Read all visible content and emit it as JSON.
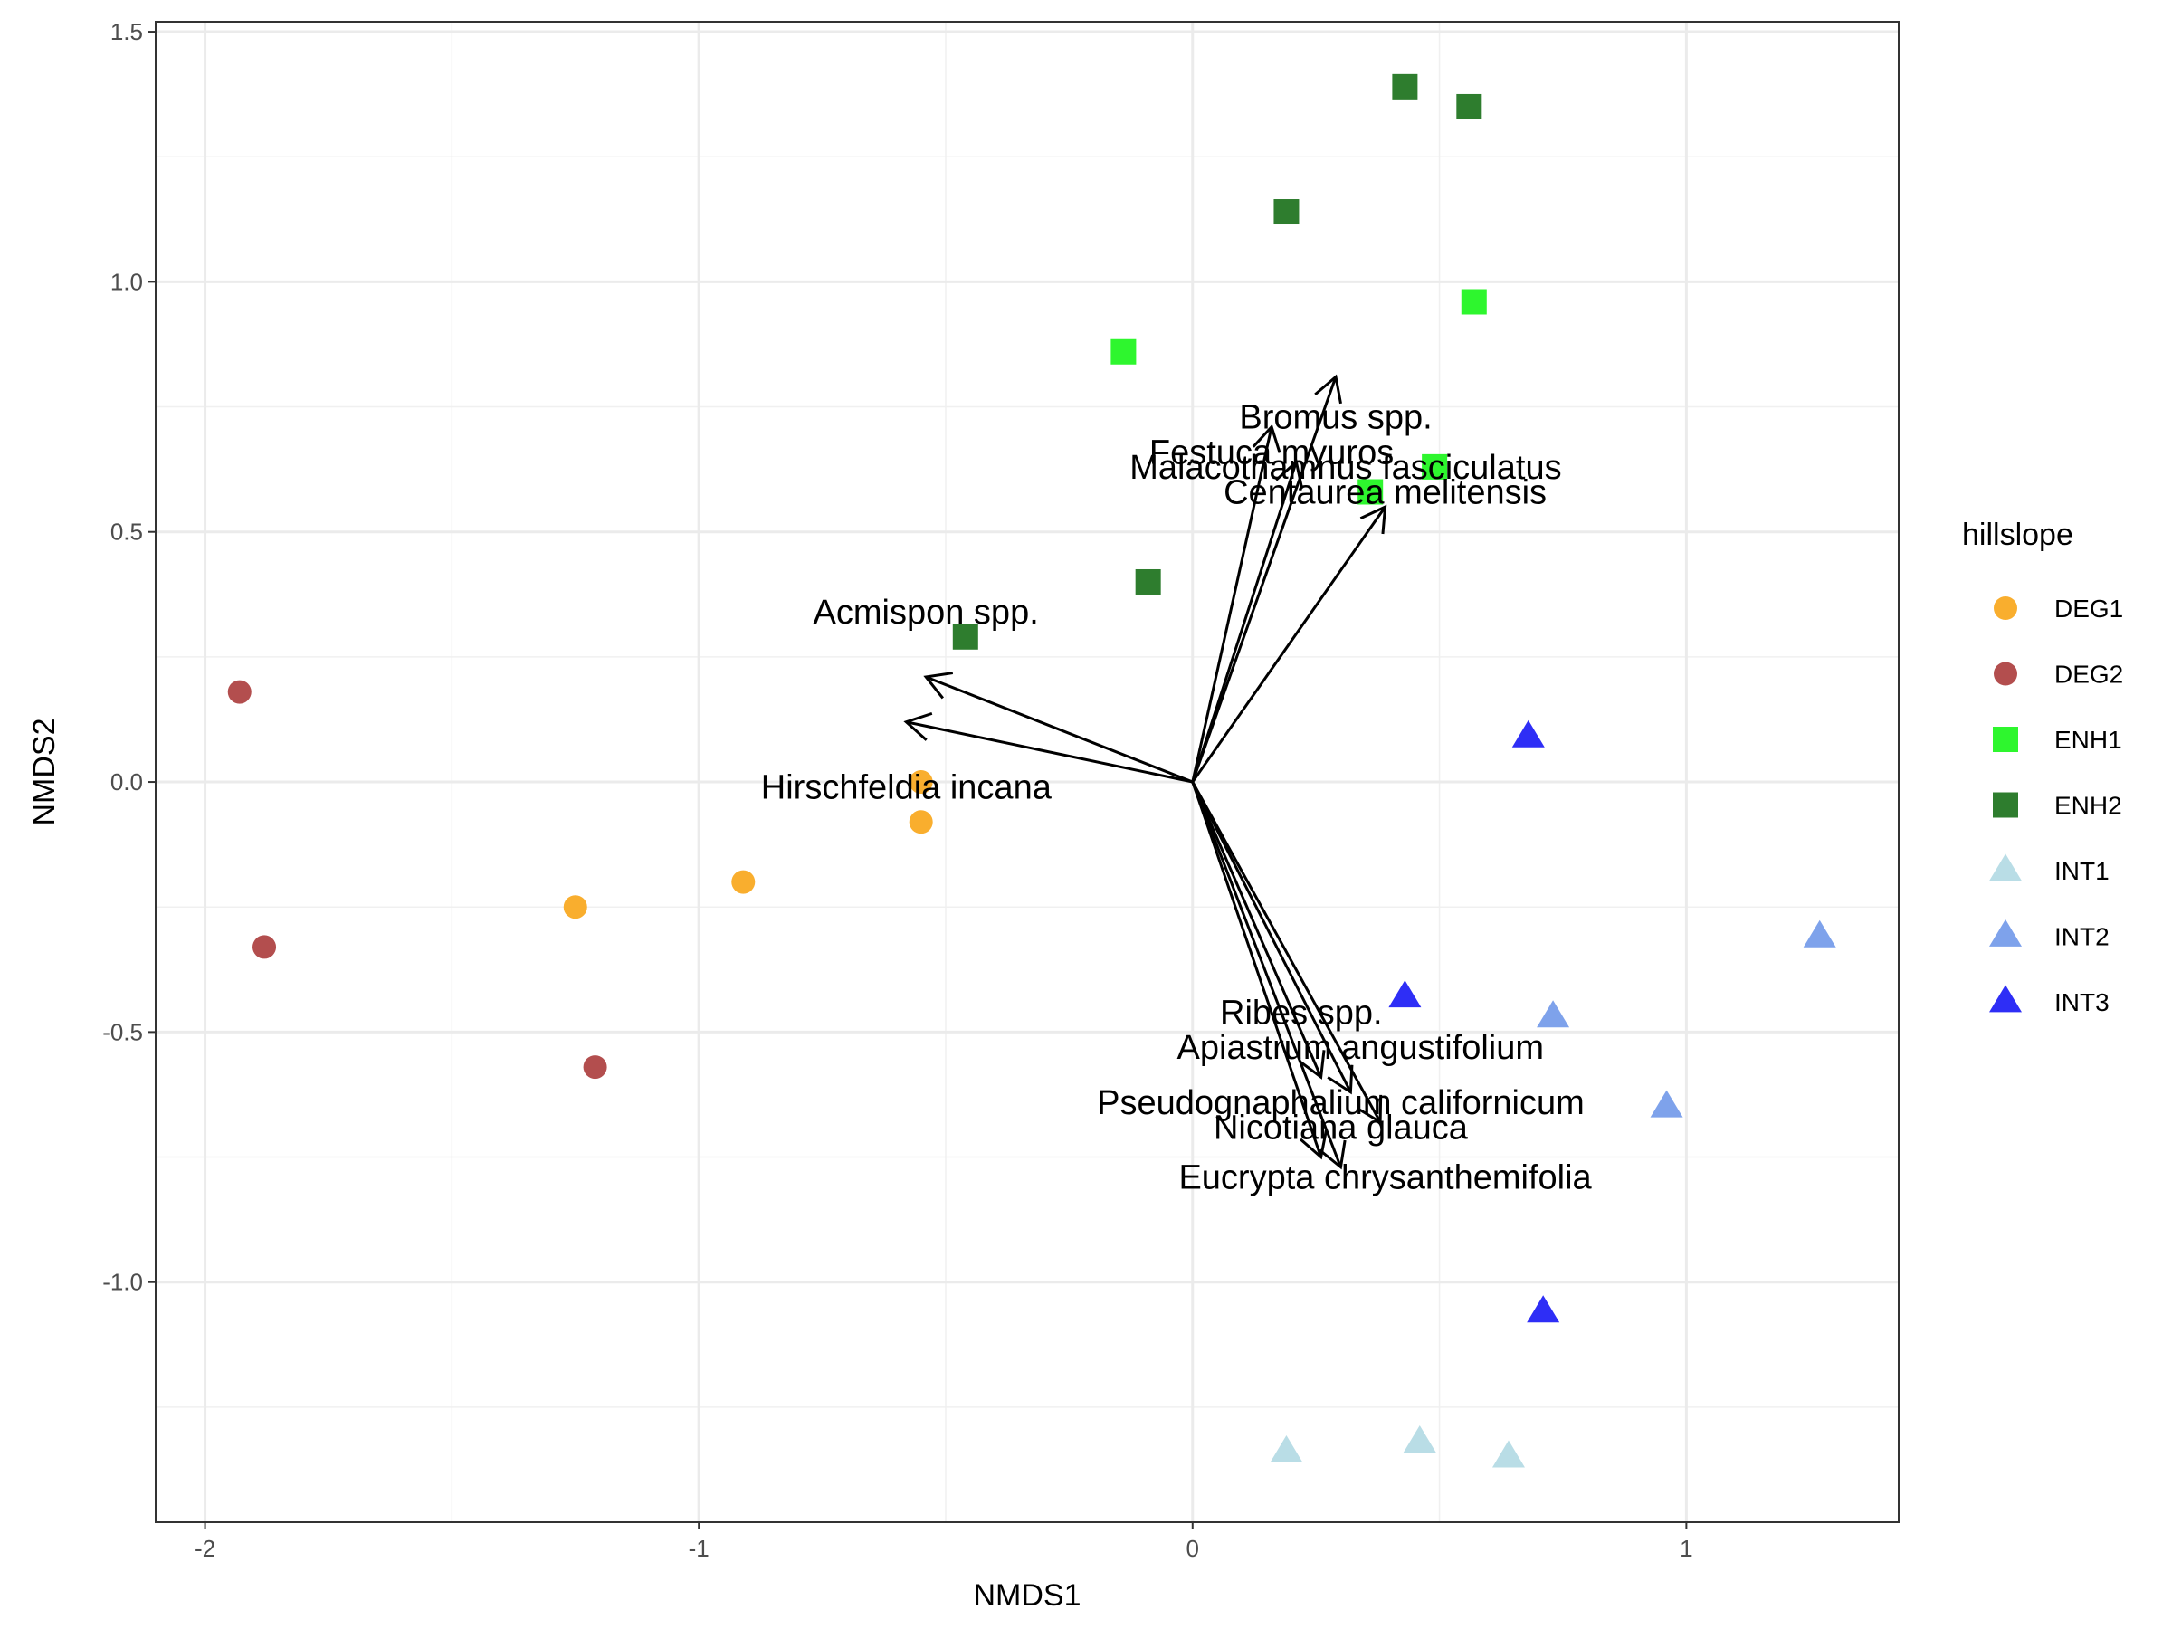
{
  "chart_data": {
    "type": "scatter",
    "title": "",
    "xlabel": "NMDS1",
    "ylabel": "NMDS2",
    "xlim": [
      -2.1,
      1.43
    ],
    "ylim": [
      -1.48,
      1.52
    ],
    "x_ticks": [
      -2,
      -1,
      0,
      1
    ],
    "x_tick_labels": [
      "-2",
      "-1",
      "0",
      "1"
    ],
    "y_ticks": [
      -1.0,
      -0.5,
      0.0,
      0.5,
      1.0,
      1.5
    ],
    "y_tick_labels": [
      "-1.0",
      "-0.5",
      "0.0",
      "0.5",
      "1.0",
      "1.5"
    ],
    "grid": true,
    "legend": {
      "title": "hillslope",
      "position": "right"
    },
    "series": [
      {
        "name": "DEG1",
        "shape": "circle",
        "color": "#F9AE2E",
        "points": [
          [
            -0.55,
            0.0
          ],
          [
            -0.55,
            -0.08
          ],
          [
            -0.91,
            -0.2
          ],
          [
            -1.25,
            -0.25
          ]
        ]
      },
      {
        "name": "DEG2",
        "shape": "circle",
        "color": "#B34E4E",
        "points": [
          [
            -1.93,
            0.18
          ],
          [
            -1.88,
            -0.33
          ],
          [
            -1.21,
            -0.57
          ]
        ]
      },
      {
        "name": "ENH1",
        "shape": "square",
        "color": "#2EF62E",
        "points": [
          [
            -0.14,
            0.86
          ],
          [
            0.57,
            0.96
          ],
          [
            0.49,
            0.63
          ],
          [
            0.36,
            0.58
          ]
        ]
      },
      {
        "name": "ENH2",
        "shape": "square",
        "color": "#2E7D2E",
        "points": [
          [
            0.43,
            1.39
          ],
          [
            0.56,
            1.35
          ],
          [
            0.19,
            1.14
          ],
          [
            -0.09,
            0.4
          ],
          [
            -0.46,
            0.29
          ]
        ]
      },
      {
        "name": "INT1",
        "shape": "triangle",
        "color": "#B9DDE6",
        "points": [
          [
            0.19,
            -1.34
          ],
          [
            0.46,
            -1.32
          ],
          [
            0.64,
            -1.35
          ]
        ]
      },
      {
        "name": "INT2",
        "shape": "triangle",
        "color": "#7EA2EB",
        "points": [
          [
            1.27,
            -0.31
          ],
          [
            0.73,
            -0.47
          ],
          [
            0.96,
            -0.65
          ]
        ]
      },
      {
        "name": "INT3",
        "shape": "triangle",
        "color": "#2E2EF6",
        "points": [
          [
            0.68,
            0.09
          ],
          [
            0.43,
            -0.43
          ],
          [
            0.71,
            -1.06
          ]
        ]
      }
    ],
    "vectors": [
      {
        "label": "Acmispon spp.",
        "end": [
          -0.54,
          0.21
        ],
        "text_at": [
          -0.54,
          0.34
        ]
      },
      {
        "label": "Hirschfeldia incana",
        "end": [
          -0.58,
          0.12
        ],
        "text_at": [
          -0.58,
          -0.01
        ]
      },
      {
        "label": "Bromus spp.",
        "end": [
          0.29,
          0.81
        ],
        "text_at": [
          0.29,
          0.73
        ]
      },
      {
        "label": "Festuca myuros",
        "end": [
          0.16,
          0.71
        ],
        "text_at": [
          0.16,
          0.66
        ]
      },
      {
        "label": "Malacothamnus fasciculatus",
        "end": [
          0.21,
          0.64
        ],
        "text_at": [
          0.31,
          0.63
        ]
      },
      {
        "label": "Centaurea melitensis",
        "end": [
          0.39,
          0.55
        ],
        "text_at": [
          0.39,
          0.58
        ]
      },
      {
        "label": "Ribes spp.",
        "end": [
          0.26,
          -0.59
        ],
        "text_at": [
          0.22,
          -0.46
        ]
      },
      {
        "label": "Apiastrum angustifolium",
        "end": [
          0.32,
          -0.62
        ],
        "text_at": [
          0.34,
          -0.53
        ]
      },
      {
        "label": "Pseudognaphalium californicum",
        "end": [
          0.38,
          -0.68
        ],
        "text_at": [
          0.3,
          -0.64
        ]
      },
      {
        "label": "Nicotiana glauca",
        "end": [
          0.3,
          -0.77
        ],
        "text_at": [
          0.3,
          -0.69
        ]
      },
      {
        "label": "Eucrypta chrysanthemifolia",
        "end": [
          0.26,
          -0.75
        ],
        "text_at": [
          0.39,
          -0.79
        ]
      }
    ]
  }
}
